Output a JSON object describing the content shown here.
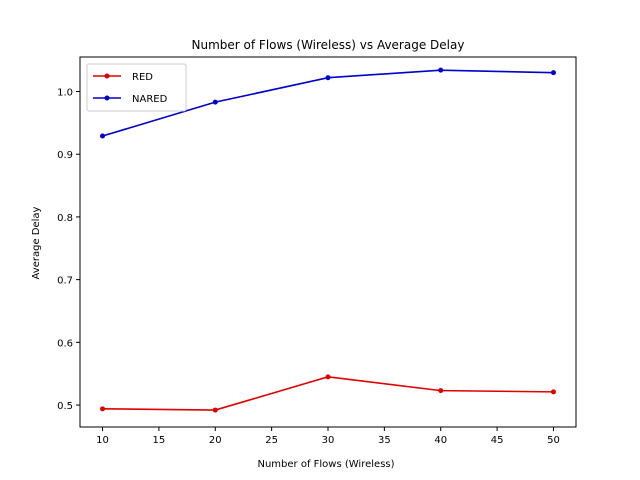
{
  "chart_data": {
    "type": "line",
    "title": "Number of Flows (Wireless)  vs Average Delay",
    "xlabel": "Number of Flows (Wireless)",
    "ylabel": "Average Delay",
    "x": [
      10,
      20,
      30,
      40,
      50
    ],
    "xlim": [
      8,
      52
    ],
    "ylim": [
      0.465,
      1.055
    ],
    "xticks": [
      "10",
      "15",
      "20",
      "25",
      "30",
      "35",
      "40",
      "45",
      "50"
    ],
    "yticks": [
      "0.5",
      "0.6",
      "0.7",
      "0.8",
      "0.9",
      "1.0"
    ],
    "grid": false,
    "legend_position": "top-left",
    "series": [
      {
        "name": "RED",
        "color": "#e00000",
        "values": [
          0.494,
          0.492,
          0.545,
          0.523,
          0.521
        ]
      },
      {
        "name": "NARED",
        "color": "#0000cc",
        "values": [
          0.929,
          0.983,
          1.022,
          1.034,
          1.03
        ]
      }
    ]
  }
}
